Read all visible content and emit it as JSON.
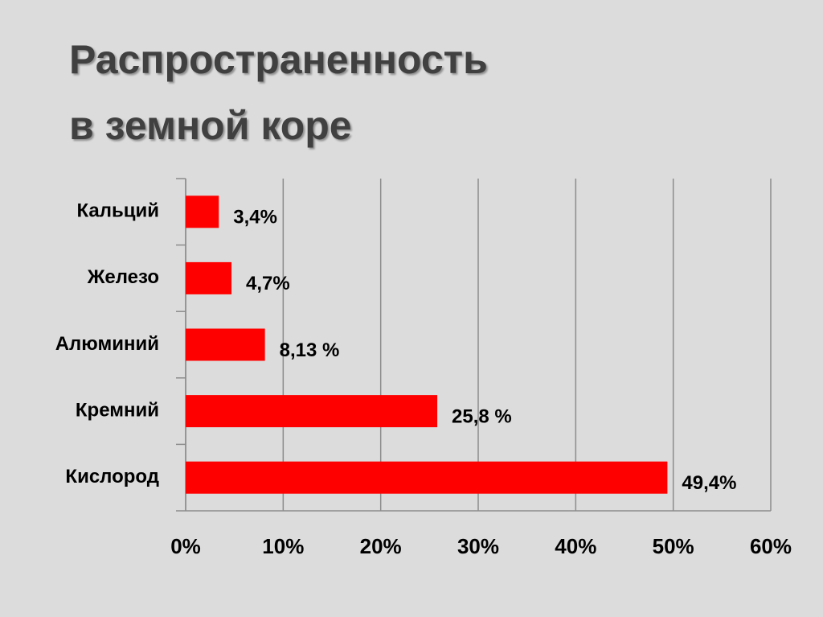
{
  "chart_data": {
    "type": "bar",
    "orientation": "horizontal",
    "title": [
      "Распространенность",
      "в земной коре"
    ],
    "categories": [
      "Кальций",
      "Железо",
      "Алюминий",
      "Кремний",
      "Кислород"
    ],
    "values": [
      3.4,
      4.7,
      8.13,
      25.8,
      49.4
    ],
    "value_labels": [
      "3,4%",
      "4,7%",
      "8,13 %",
      "25,8 %",
      "49,4%"
    ],
    "color": "#ff0000",
    "xlim": [
      0,
      60
    ],
    "xticks": [
      {
        "value": 0,
        "label": "0%"
      },
      {
        "value": 10,
        "label": "10%"
      },
      {
        "value": 20,
        "label": "20%"
      },
      {
        "value": 30,
        "label": "30%"
      },
      {
        "value": 40,
        "label": "40%"
      },
      {
        "value": 50,
        "label": "50%"
      },
      {
        "value": 60,
        "label": "60%"
      }
    ],
    "grid": true
  }
}
